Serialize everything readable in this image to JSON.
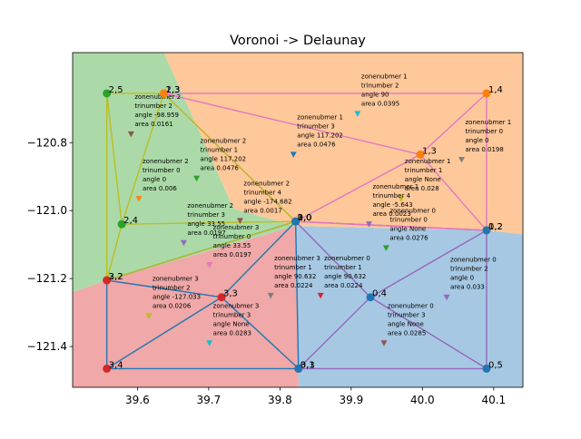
{
  "chart_data": {
    "type": "scatter",
    "title": "Voronoi -> Delaunay",
    "xlabel": "",
    "ylabel": "",
    "xlim": [
      39.509,
      40.141
    ],
    "ylim": [
      -121.52,
      -120.535
    ],
    "x_ticks": [
      39.6,
      39.7,
      39.8,
      39.9,
      40.0,
      40.1
    ],
    "x_tick_labels": [
      "39.6",
      "39.7",
      "39.8",
      "39.9",
      "40.0",
      "40.1"
    ],
    "y_ticks": [
      -120.8,
      -121.0,
      -121.2,
      -121.4
    ],
    "y_tick_labels": [
      "−120.8",
      "−121.0",
      "−121.2",
      "−121.4"
    ],
    "grid": false,
    "regions": [
      {
        "zone": 0,
        "color": "#a6c8e3",
        "polygon": [
          [
            39.826,
            -121.52
          ],
          [
            39.822,
            -121.045
          ],
          [
            40.09,
            -121.058
          ],
          [
            40.141,
            -121.07
          ],
          [
            40.141,
            -121.52
          ]
        ]
      },
      {
        "zone": 1,
        "color": "#fec89a",
        "polygon": [
          [
            39.637,
            -120.535
          ],
          [
            40.141,
            -120.535
          ],
          [
            40.141,
            -121.07
          ],
          [
            40.09,
            -121.058
          ],
          [
            39.822,
            -121.045
          ],
          [
            39.735,
            -120.995
          ]
        ]
      },
      {
        "zone": 2,
        "color": "#abdaa8",
        "polygon": [
          [
            39.509,
            -120.535
          ],
          [
            39.637,
            -120.535
          ],
          [
            39.735,
            -120.995
          ],
          [
            39.822,
            -121.045
          ],
          [
            39.557,
            -121.205
          ],
          [
            39.509,
            -121.24
          ]
        ]
      },
      {
        "zone": 3,
        "color": "#f0a8a8",
        "polygon": [
          [
            39.509,
            -121.24
          ],
          [
            39.557,
            -121.205
          ],
          [
            39.822,
            -121.045
          ],
          [
            39.826,
            -121.52
          ],
          [
            39.509,
            -121.52
          ]
        ]
      }
    ],
    "edges": [
      {
        "color": "#1f77b4",
        "from": [
          39.557,
          -121.205
        ],
        "to": [
          39.822,
          -121.032
        ]
      },
      {
        "color": "#1f77b4",
        "from": [
          39.557,
          -121.205
        ],
        "to": [
          39.718,
          -121.255
        ]
      },
      {
        "color": "#1f77b4",
        "from": [
          39.557,
          -121.205
        ],
        "to": [
          39.557,
          -121.465
        ]
      },
      {
        "color": "#1f77b4",
        "from": [
          39.718,
          -121.255
        ],
        "to": [
          39.822,
          -121.032
        ]
      },
      {
        "color": "#1f77b4",
        "from": [
          39.718,
          -121.255
        ],
        "to": [
          39.557,
          -121.465
        ]
      },
      {
        "color": "#1f77b4",
        "from": [
          39.718,
          -121.255
        ],
        "to": [
          39.826,
          -121.465
        ]
      },
      {
        "color": "#1f77b4",
        "from": [
          39.557,
          -121.465
        ],
        "to": [
          39.826,
          -121.465
        ]
      },
      {
        "color": "#1f77b4",
        "from": [
          39.822,
          -121.032
        ],
        "to": [
          39.826,
          -121.465
        ]
      },
      {
        "color": "#9467bd",
        "from": [
          39.822,
          -121.032
        ],
        "to": [
          40.09,
          -121.058
        ]
      },
      {
        "color": "#9467bd",
        "from": [
          39.822,
          -121.032
        ],
        "to": [
          39.927,
          -121.255
        ]
      },
      {
        "color": "#9467bd",
        "from": [
          39.927,
          -121.255
        ],
        "to": [
          40.09,
          -121.058
        ]
      },
      {
        "color": "#9467bd",
        "from": [
          39.927,
          -121.255
        ],
        "to": [
          40.09,
          -121.465
        ]
      },
      {
        "color": "#9467bd",
        "from": [
          39.927,
          -121.255
        ],
        "to": [
          39.826,
          -121.465
        ]
      },
      {
        "color": "#9467bd",
        "from": [
          39.826,
          -121.465
        ],
        "to": [
          40.09,
          -121.465
        ]
      },
      {
        "color": "#9467bd",
        "from": [
          40.09,
          -121.058
        ],
        "to": [
          40.09,
          -121.465
        ]
      },
      {
        "color": "#e377c2",
        "from": [
          39.637,
          -120.655
        ],
        "to": [
          40.09,
          -120.655
        ]
      },
      {
        "color": "#e377c2",
        "from": [
          39.637,
          -120.655
        ],
        "to": [
          39.997,
          -120.835
        ]
      },
      {
        "color": "#e377c2",
        "from": [
          39.637,
          -120.655
        ],
        "to": [
          39.822,
          -121.032
        ]
      },
      {
        "color": "#e377c2",
        "from": [
          39.997,
          -120.835
        ],
        "to": [
          40.09,
          -120.655
        ]
      },
      {
        "color": "#e377c2",
        "from": [
          39.997,
          -120.835
        ],
        "to": [
          40.09,
          -121.058
        ]
      },
      {
        "color": "#e377c2",
        "from": [
          39.997,
          -120.835
        ],
        "to": [
          39.822,
          -121.032
        ]
      },
      {
        "color": "#e377c2",
        "from": [
          39.822,
          -121.032
        ],
        "to": [
          40.09,
          -121.058
        ]
      },
      {
        "color": "#e377c2",
        "from": [
          40.09,
          -120.655
        ],
        "to": [
          40.09,
          -121.058
        ]
      },
      {
        "color": "#bcbd22",
        "from": [
          39.557,
          -120.655
        ],
        "to": [
          39.637,
          -120.655
        ]
      },
      {
        "color": "#bcbd22",
        "from": [
          39.557,
          -120.655
        ],
        "to": [
          39.578,
          -121.04
        ]
      },
      {
        "color": "#bcbd22",
        "from": [
          39.557,
          -120.655
        ],
        "to": [
          39.557,
          -121.205
        ]
      },
      {
        "color": "#bcbd22",
        "from": [
          39.637,
          -120.655
        ],
        "to": [
          39.578,
          -121.04
        ]
      },
      {
        "color": "#bcbd22",
        "from": [
          39.637,
          -120.655
        ],
        "to": [
          39.822,
          -121.032
        ]
      },
      {
        "color": "#bcbd22",
        "from": [
          39.578,
          -121.04
        ],
        "to": [
          39.822,
          -121.032
        ]
      },
      {
        "color": "#bcbd22",
        "from": [
          39.578,
          -121.04
        ],
        "to": [
          39.557,
          -121.205
        ]
      },
      {
        "color": "#bcbd22",
        "from": [
          39.557,
          -121.205
        ],
        "to": [
          39.822,
          -121.032
        ]
      }
    ],
    "points": [
      {
        "label": "2,5",
        "x": 39.557,
        "y": -120.655,
        "color": "#2ca02c"
      },
      {
        "label": "2,3",
        "x": 39.637,
        "y": -120.655,
        "color": "#2ca02c"
      },
      {
        "label": "1,3",
        "x": 39.637,
        "y": -120.655,
        "color": "#ff7f0e"
      },
      {
        "label": "1,4",
        "x": 40.09,
        "y": -120.655,
        "color": "#ff7f0e"
      },
      {
        "label": "1,3",
        "x": 39.997,
        "y": -120.835,
        "color": "#ff7f0e"
      },
      {
        "label": "2,4",
        "x": 39.578,
        "y": -121.04,
        "color": "#2ca02c"
      },
      {
        "label": "1,0",
        "x": 39.822,
        "y": -121.032,
        "color": "#ff7f0e"
      },
      {
        "label": "2,0",
        "x": 39.822,
        "y": -121.032,
        "color": "#2ca02c"
      },
      {
        "label": "3,0",
        "x": 39.822,
        "y": -121.032,
        "color": "#d62728"
      },
      {
        "label": "0,0",
        "x": 39.822,
        "y": -121.032,
        "color": "#1f77b4"
      },
      {
        "label": "1,2",
        "x": 40.09,
        "y": -121.058,
        "color": "#ff7f0e"
      },
      {
        "label": "0,2",
        "x": 40.09,
        "y": -121.058,
        "color": "#1f77b4"
      },
      {
        "label": "2,2",
        "x": 39.557,
        "y": -121.205,
        "color": "#2ca02c"
      },
      {
        "label": "3,2",
        "x": 39.557,
        "y": -121.205,
        "color": "#d62728"
      },
      {
        "label": "3,3",
        "x": 39.718,
        "y": -121.255,
        "color": "#d62728"
      },
      {
        "label": "0,4",
        "x": 39.927,
        "y": -121.255,
        "color": "#1f77b4"
      },
      {
        "label": "3,4",
        "x": 39.557,
        "y": -121.465,
        "color": "#d62728"
      },
      {
        "label": "3,1",
        "x": 39.826,
        "y": -121.465,
        "color": "#d62728"
      },
      {
        "label": "0,3",
        "x": 39.826,
        "y": -121.465,
        "color": "#1f77b4"
      },
      {
        "label": "0,5",
        "x": 40.09,
        "y": -121.465,
        "color": "#1f77b4"
      }
    ],
    "annotations": [
      {
        "x": 39.909,
        "y": -120.715,
        "color": "#17becf",
        "lines": [
          "zonenubmer 1",
          "trinumber 2",
          "angle 90",
          "area 0.0395"
        ]
      },
      {
        "x": 39.591,
        "y": -120.775,
        "color": "#8c564b",
        "lines": [
          "zonenubmer 2",
          "trinumber 2",
          "angle -98.959",
          "area 0.0161"
        ]
      },
      {
        "x": 39.819,
        "y": -120.835,
        "color": "#1f77b4",
        "lines": [
          "zonenubmer 1",
          "trinumber 3",
          "angle 117.202",
          "area 0.0476"
        ]
      },
      {
        "x": 40.055,
        "y": -120.85,
        "color": "#7f7f7f",
        "lines": [
          "zonenubmer 1",
          "trinumber 0",
          "angle 0",
          "area 0.0198"
        ]
      },
      {
        "x": 39.683,
        "y": -120.905,
        "color": "#2ca02c",
        "lines": [
          "zonenubmer 2",
          "trinumber 1",
          "angle 117.202",
          "area 0.0476"
        ]
      },
      {
        "x": 39.602,
        "y": -120.965,
        "color": "#ff7f0e",
        "lines": [
          "zonenubmer 2",
          "trinumber 0",
          "angle 0",
          "area 0.006"
        ]
      },
      {
        "x": 39.97,
        "y": -120.965,
        "color": "#bcbd22",
        "lines": [
          "zonenubmer 1",
          "trinumber 1",
          "angle None",
          "area 0.028"
        ]
      },
      {
        "x": 39.744,
        "y": -121.03,
        "color": "#8c564b",
        "lines": [
          "zonenubmer 2",
          "trinumber 4",
          "angle -174.682",
          "area 0.0017"
        ]
      },
      {
        "x": 39.925,
        "y": -121.04,
        "color": "#9467bd",
        "lines": [
          "zonenubmer 1",
          "trinumber 4",
          "angle -5.643",
          "area 0.0023"
        ]
      },
      {
        "x": 39.665,
        "y": -121.095,
        "color": "#9467bd",
        "lines": [
          "zonenubmer 2",
          "trinumber 3",
          "angle 33.55",
          "area 0.0197"
        ]
      },
      {
        "x": 39.701,
        "y": -121.16,
        "color": "#e377c2",
        "lines": [
          "zonenubmer 3",
          "trinumber 0",
          "angle 33.55",
          "area 0.0197"
        ]
      },
      {
        "x": 39.949,
        "y": -121.11,
        "color": "#2ca02c",
        "lines": [
          "zonenubmer 0",
          "trinumber 0",
          "angle None",
          "area 0.0276"
        ]
      },
      {
        "x": 39.787,
        "y": -121.25,
        "color": "#7f7f7f",
        "lines": [
          "zonenubmer 3",
          "trinumber 1",
          "angle 90.632",
          "area 0.0224"
        ]
      },
      {
        "x": 39.857,
        "y": -121.25,
        "color": "#d62728",
        "lines": [
          "zonenubmer 0",
          "trinumber 1",
          "angle 90.632",
          "area 0.0224"
        ]
      },
      {
        "x": 40.034,
        "y": -121.255,
        "color": "#9467bd",
        "lines": [
          "zonenubmer 0",
          "trinumber 2",
          "angle 0",
          "area 0.033"
        ]
      },
      {
        "x": 39.616,
        "y": -121.31,
        "color": "#bcbd22",
        "lines": [
          "zonenubmer 3",
          "trinumber 2",
          "angle -127.033",
          "area 0.0206"
        ]
      },
      {
        "x": 39.701,
        "y": -121.39,
        "color": "#17becf",
        "lines": [
          "zonenubmer 3",
          "trinumber 3",
          "angle None",
          "area 0.0283"
        ]
      },
      {
        "x": 39.946,
        "y": -121.39,
        "color": "#8c564b",
        "lines": [
          "zonenubmer 0",
          "trinumber 3",
          "angle None",
          "area 0.0285"
        ]
      }
    ]
  }
}
